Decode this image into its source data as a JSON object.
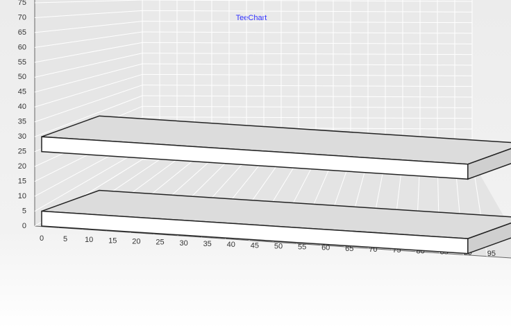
{
  "chart_data": {
    "type": "bar3d",
    "title": "TeeChart",
    "bars": [
      {
        "x": [
          0,
          90
        ],
        "y": [
          0,
          5
        ]
      },
      {
        "x": [
          0,
          90
        ],
        "y": [
          25,
          30
        ]
      }
    ],
    "xlim": [
      0,
      100
    ],
    "xticks": [
      0,
      5,
      10,
      15,
      20,
      25,
      30,
      35,
      40,
      45,
      50,
      55,
      60,
      65,
      70,
      75,
      80,
      85,
      90,
      95
    ],
    "ylim": [
      0,
      75
    ],
    "yticks": [
      0,
      5,
      10,
      15,
      20,
      25,
      30,
      35,
      40,
      45,
      50,
      55,
      60,
      65,
      70,
      75
    ],
    "grid": true
  }
}
